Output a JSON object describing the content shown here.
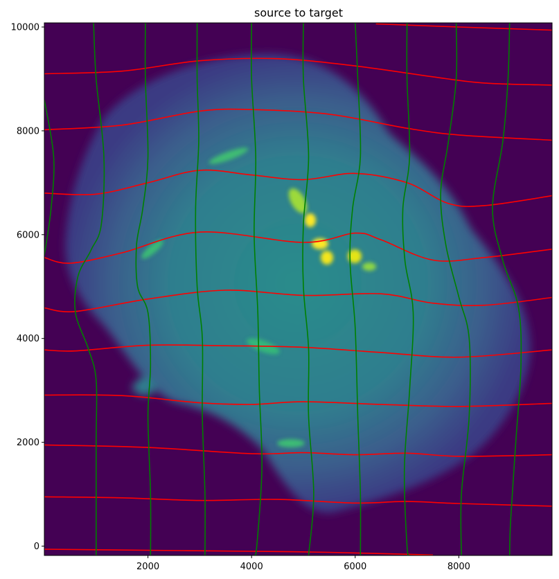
{
  "chart_data": {
    "type": "heatmap",
    "title": "source to target",
    "xlabel": "",
    "ylabel": "",
    "xlim": [
      0,
      9800
    ],
    "ylim": [
      -180,
      10080
    ],
    "xticks": [
      2000,
      4000,
      6000,
      8000
    ],
    "yticks": [
      0,
      2000,
      4000,
      6000,
      8000,
      10000
    ],
    "grid": false,
    "legend": "none",
    "colormap": "viridis",
    "background_color": "#440154",
    "image_description": "deformed brain section intensity image (viridis), bright yellow blobs near center",
    "series": [
      {
        "color": "#ff0000",
        "orientation": "horizontal-grid-lines",
        "lines": [
          [
            [
              0,
              -60
            ],
            [
              2000,
              -80
            ],
            [
              4000,
              -100
            ],
            [
              5500,
              -120
            ],
            [
              7500,
              -170
            ]
          ],
          [
            [
              0,
              950
            ],
            [
              1500,
              930
            ],
            [
              3000,
              880
            ],
            [
              4500,
              900
            ],
            [
              6000,
              830
            ],
            [
              7000,
              860
            ],
            [
              8000,
              820
            ],
            [
              9800,
              770
            ]
          ],
          [
            [
              0,
              1950
            ],
            [
              2000,
              1900
            ],
            [
              4000,
              1780
            ],
            [
              5000,
              1800
            ],
            [
              6000,
              1760
            ],
            [
              7000,
              1790
            ],
            [
              8000,
              1730
            ],
            [
              9800,
              1760
            ]
          ],
          [
            [
              0,
              2910
            ],
            [
              1500,
              2900
            ],
            [
              3000,
              2760
            ],
            [
              4000,
              2730
            ],
            [
              5000,
              2780
            ],
            [
              6500,
              2730
            ],
            [
              8000,
              2690
            ],
            [
              9800,
              2750
            ]
          ],
          [
            [
              0,
              3780
            ],
            [
              600,
              3760
            ],
            [
              2000,
              3870
            ],
            [
              3500,
              3860
            ],
            [
              5000,
              3830
            ],
            [
              6500,
              3730
            ],
            [
              8000,
              3640
            ],
            [
              9800,
              3780
            ]
          ],
          [
            [
              0,
              4590
            ],
            [
              600,
              4520
            ],
            [
              2000,
              4760
            ],
            [
              3500,
              4930
            ],
            [
              5000,
              4830
            ],
            [
              6500,
              4860
            ],
            [
              7500,
              4680
            ],
            [
              8500,
              4640
            ],
            [
              9800,
              4790
            ]
          ],
          [
            [
              0,
              5560
            ],
            [
              500,
              5450
            ],
            [
              1500,
              5650
            ],
            [
              3000,
              6050
            ],
            [
              5000,
              5850
            ],
            [
              6000,
              6030
            ],
            [
              6500,
              5900
            ],
            [
              7500,
              5510
            ],
            [
              8500,
              5560
            ],
            [
              9800,
              5720
            ]
          ],
          [
            [
              0,
              6800
            ],
            [
              1000,
              6780
            ],
            [
              2000,
              7000
            ],
            [
              3000,
              7240
            ],
            [
              4000,
              7150
            ],
            [
              5000,
              7060
            ],
            [
              6000,
              7180
            ],
            [
              7000,
              7000
            ],
            [
              7800,
              6600
            ],
            [
              8500,
              6560
            ],
            [
              9800,
              6750
            ]
          ],
          [
            [
              0,
              8020
            ],
            [
              1500,
              8110
            ],
            [
              3000,
              8380
            ],
            [
              4000,
              8410
            ],
            [
              5500,
              8320
            ],
            [
              7000,
              8050
            ],
            [
              8000,
              7920
            ],
            [
              9800,
              7820
            ]
          ],
          [
            [
              0,
              9100
            ],
            [
              1500,
              9150
            ],
            [
              3000,
              9350
            ],
            [
              4500,
              9390
            ],
            [
              6000,
              9250
            ],
            [
              7500,
              9040
            ],
            [
              8500,
              8920
            ],
            [
              9800,
              8880
            ]
          ],
          [
            [
              6400,
              10060
            ],
            [
              8000,
              10000
            ],
            [
              9800,
              9940
            ]
          ]
        ]
      },
      {
        "color": "#008000",
        "orientation": "vertical-grid-lines",
        "lines": [
          [
            [
              0,
              8600
            ],
            [
              180,
              7500
            ],
            [
              130,
              6500
            ],
            [
              0,
              5600
            ]
          ],
          [
            [
              950,
              10080
            ],
            [
              1000,
              9000
            ],
            [
              1150,
              7500
            ],
            [
              1100,
              6200
            ],
            [
              900,
              5700
            ],
            [
              650,
              5200
            ],
            [
              600,
              4500
            ],
            [
              850,
              3800
            ],
            [
              1000,
              3200
            ],
            [
              1000,
              2000
            ],
            [
              1000,
              -180
            ]
          ],
          [
            [
              1950,
              10080
            ],
            [
              1950,
              9000
            ],
            [
              2000,
              7500
            ],
            [
              1900,
              6500
            ],
            [
              1780,
              5800
            ],
            [
              1800,
              5000
            ],
            [
              2000,
              4500
            ],
            [
              2050,
              3500
            ],
            [
              2000,
              2500
            ],
            [
              2050,
              1000
            ],
            [
              2050,
              -180
            ]
          ],
          [
            [
              2950,
              10080
            ],
            [
              2950,
              9000
            ],
            [
              2980,
              7800
            ],
            [
              2920,
              6500
            ],
            [
              2950,
              5000
            ],
            [
              3050,
              4000
            ],
            [
              3050,
              2500
            ],
            [
              3100,
              1000
            ],
            [
              3100,
              -180
            ]
          ],
          [
            [
              4000,
              10080
            ],
            [
              4000,
              9000
            ],
            [
              4080,
              7500
            ],
            [
              4050,
              6000
            ],
            [
              4120,
              4500
            ],
            [
              4150,
              3000
            ],
            [
              4200,
              1500
            ],
            [
              4100,
              0
            ],
            [
              4050,
              -180
            ]
          ],
          [
            [
              5000,
              10080
            ],
            [
              5000,
              9000
            ],
            [
              5100,
              7500
            ],
            [
              5000,
              6200
            ],
            [
              5000,
              5000
            ],
            [
              5100,
              3800
            ],
            [
              5100,
              2500
            ],
            [
              5200,
              1000
            ],
            [
              5100,
              -180
            ]
          ],
          [
            [
              6000,
              10080
            ],
            [
              6050,
              9000
            ],
            [
              6100,
              7500
            ],
            [
              5950,
              6500
            ],
            [
              5900,
              5500
            ],
            [
              6000,
              4200
            ],
            [
              6050,
              2500
            ],
            [
              6100,
              1000
            ],
            [
              6100,
              -180
            ]
          ],
          [
            [
              7000,
              10080
            ],
            [
              7000,
              9000
            ],
            [
              7050,
              7500
            ],
            [
              6920,
              6500
            ],
            [
              6960,
              5500
            ],
            [
              7120,
              4500
            ],
            [
              7050,
              3000
            ],
            [
              6950,
              1500
            ],
            [
              7000,
              0
            ],
            [
              7050,
              -180
            ]
          ],
          [
            [
              7950,
              10080
            ],
            [
              7950,
              9000
            ],
            [
              7800,
              7800
            ],
            [
              7650,
              6800
            ],
            [
              7750,
              5800
            ],
            [
              8000,
              4800
            ],
            [
              8200,
              4000
            ],
            [
              8200,
              2500
            ],
            [
              8050,
              1000
            ],
            [
              8050,
              -180
            ]
          ],
          [
            [
              8980,
              10080
            ],
            [
              8950,
              9000
            ],
            [
              8850,
              7800
            ],
            [
              8650,
              6500
            ],
            [
              8850,
              5500
            ],
            [
              9150,
              4600
            ],
            [
              9200,
              3500
            ],
            [
              9100,
              2000
            ],
            [
              9000,
              500
            ],
            [
              8980,
              -180
            ]
          ]
        ]
      }
    ]
  }
}
